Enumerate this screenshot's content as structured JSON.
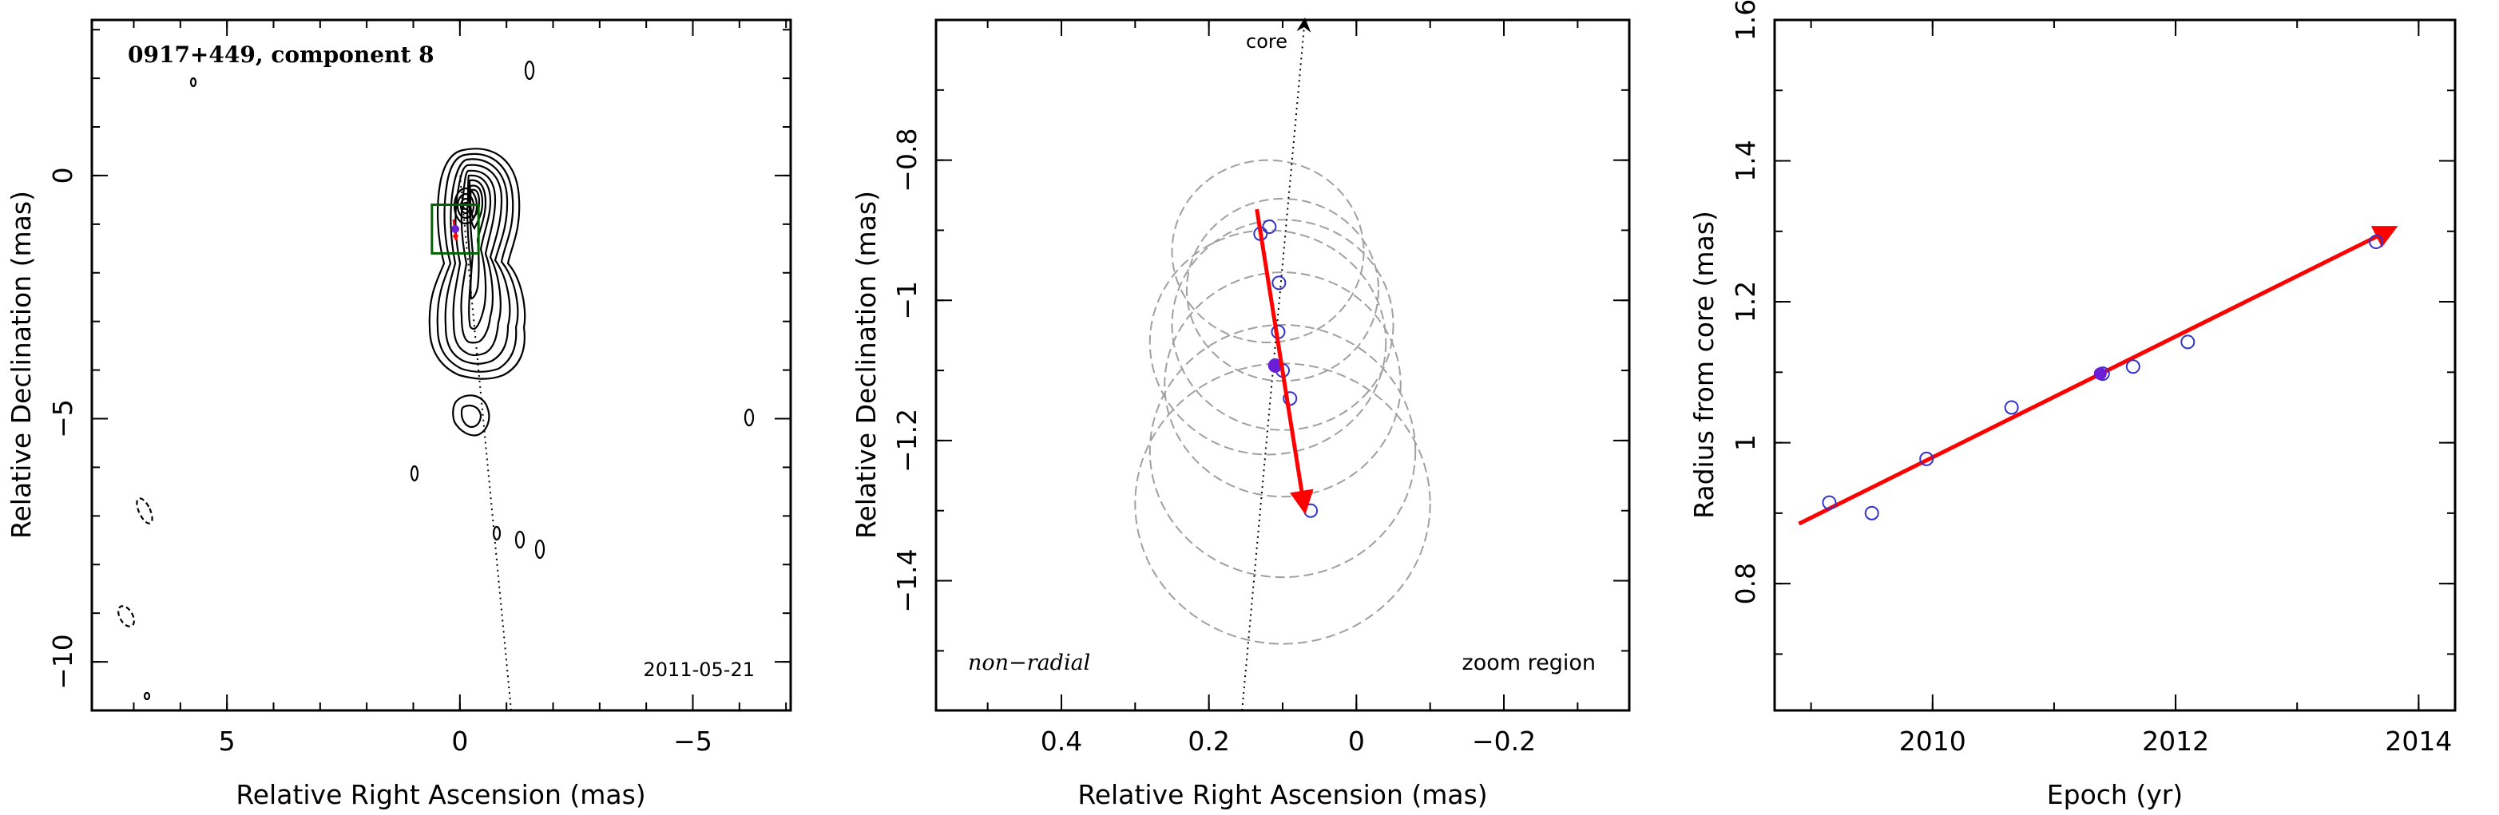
{
  "chart_data": [
    {
      "type": "contour",
      "title": "0917+449, component 8",
      "date_label": "2011-05-21",
      "xlabel": "Relative Right Ascension (mas)",
      "ylabel": "Relative Declination (mas)",
      "xlim": [
        7.9,
        -7.1
      ],
      "ylim": [
        -11.0,
        3.2
      ],
      "x_ticks": [
        5,
        0,
        -5
      ],
      "y_ticks": [
        0,
        -5,
        -10
      ],
      "core_direction_line": [
        [
          -1.1,
          -11.0
        ],
        [
          0.0,
          0.0
        ]
      ],
      "component_position": [
        0.1,
        -1.1
      ],
      "zoom_box": {
        "x": [
          0.6,
          -0.4
        ],
        "y": [
          -0.6,
          -1.6
        ]
      },
      "colors": {
        "contour": "#000000",
        "zoom_box": "#006400",
        "component": "#6a1fd6",
        "arrow": "#ff0000"
      }
    },
    {
      "type": "scatter",
      "xlabel": "Relative Right Ascension (mas)",
      "ylabel": "Relative Declination (mas)",
      "xlim": [
        0.57,
        -0.37
      ],
      "ylim": [
        -1.585,
        -0.6
      ],
      "x_ticks": [
        0.4,
        0.2,
        0,
        -0.2
      ],
      "y_ticks": [
        -0.8,
        -1,
        -1.2,
        -1.4
      ],
      "labels": {
        "core": "core",
        "motion_type": "non−radial",
        "region": "zoom region"
      },
      "points": [
        {
          "x": 0.13,
          "y": -0.905
        },
        {
          "x": 0.118,
          "y": -0.895
        },
        {
          "x": 0.105,
          "y": -0.975
        },
        {
          "x": 0.106,
          "y": -1.045
        },
        {
          "x": 0.1,
          "y": -1.1
        },
        {
          "x": 0.09,
          "y": -1.14
        },
        {
          "x": 0.062,
          "y": -1.3
        }
      ],
      "highlight_point": {
        "x": 0.11,
        "y": -1.093
      },
      "circles": [
        {
          "x": 0.12,
          "y": -0.93,
          "r": 0.13
        },
        {
          "x": 0.1,
          "y": -0.985,
          "r": 0.13
        },
        {
          "x": 0.1,
          "y": -1.035,
          "r": 0.15
        },
        {
          "x": 0.12,
          "y": -1.06,
          "r": 0.16
        },
        {
          "x": 0.1,
          "y": -1.12,
          "r": 0.16
        },
        {
          "x": 0.1,
          "y": -1.215,
          "r": 0.18
        },
        {
          "x": 0.1,
          "y": -1.29,
          "r": 0.2
        }
      ],
      "core_line": [
        [
          0.155,
          -1.585
        ],
        [
          0.07,
          -0.6
        ]
      ],
      "motion_arrow": [
        [
          0.135,
          -0.87
        ],
        [
          0.07,
          -1.3
        ]
      ],
      "colors": {
        "points": "#3333cc",
        "highlight": "#6a1fd6",
        "circles": "#a0a0a0",
        "arrow": "#ff0000"
      }
    },
    {
      "type": "scatter",
      "xlabel": "Epoch (yr)",
      "ylabel": "Radius from core (mas)",
      "xlim": [
        2008.7,
        2014.3
      ],
      "ylim": [
        0.62,
        1.6
      ],
      "x_ticks": [
        2010,
        2012,
        2014
      ],
      "x_tick_labels": [
        "2010",
        "2012",
        "2014"
      ],
      "y_ticks": [
        0.8,
        1,
        1.2,
        1.4,
        1.6
      ],
      "points": [
        {
          "x": 2009.15,
          "y": 0.915
        },
        {
          "x": 2009.5,
          "y": 0.9
        },
        {
          "x": 2009.95,
          "y": 0.977
        },
        {
          "x": 2010.65,
          "y": 1.05
        },
        {
          "x": 2011.4,
          "y": 1.098
        },
        {
          "x": 2011.65,
          "y": 1.108
        },
        {
          "x": 2012.1,
          "y": 1.143
        },
        {
          "x": 2013.65,
          "y": 1.285
        }
      ],
      "highlight_point": {
        "x": 2011.38,
        "y": 1.098
      },
      "fit_line": [
        [
          2008.9,
          0.885
        ],
        [
          2013.8,
          1.305
        ]
      ],
      "colors": {
        "points": "#3333cc",
        "highlight": "#6a1fd6",
        "fit": "#ff0000"
      }
    }
  ]
}
